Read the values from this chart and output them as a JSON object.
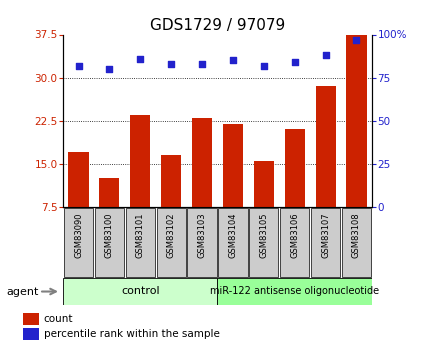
{
  "title": "GDS1729 / 97079",
  "samples": [
    "GSM83090",
    "GSM83100",
    "GSM83101",
    "GSM83102",
    "GSM83103",
    "GSM83104",
    "GSM83105",
    "GSM83106",
    "GSM83107",
    "GSM83108"
  ],
  "counts": [
    17.0,
    12.5,
    23.5,
    16.5,
    23.0,
    22.0,
    15.5,
    21.0,
    28.5,
    37.5
  ],
  "percentiles": [
    82,
    80,
    86,
    83,
    83,
    85,
    82,
    84,
    88,
    97
  ],
  "ylim_left": [
    7.5,
    37.5
  ],
  "yticks_left": [
    7.5,
    15.0,
    22.5,
    30.0,
    37.5
  ],
  "ylim_right": [
    0,
    100
  ],
  "yticks_right": [
    0,
    25,
    50,
    75,
    100
  ],
  "bar_color": "#cc2200",
  "dot_color": "#2222cc",
  "control_label": "control",
  "treatment_label": "miR-122 antisense oligonucleotide",
  "agent_label": "agent",
  "legend_count_label": "count",
  "legend_pct_label": "percentile rank within the sample",
  "control_bg": "#ccffcc",
  "treatment_bg": "#99ff99",
  "tick_label_bg": "#cccccc",
  "title_fontsize": 11,
  "tick_fontsize": 7.5,
  "label_fontsize": 8
}
